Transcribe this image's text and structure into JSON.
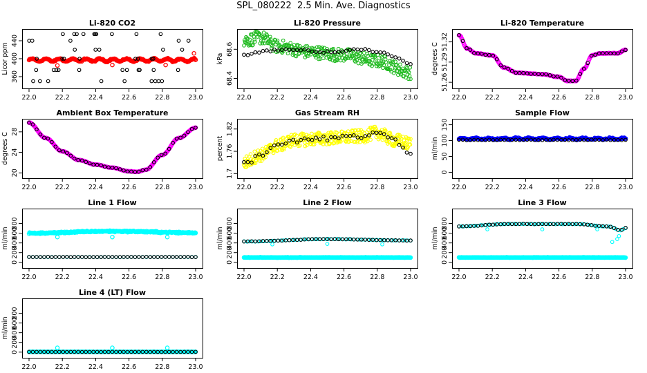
{
  "title": "SPL_080222  2.5 Min. Ave. Diagnostics",
  "chart_data": [
    {
      "id": "co2",
      "type": "scatter",
      "title": "Li-820 CO2",
      "ylabel": "Licor ppm",
      "xlim": [
        22.0,
        23.0
      ],
      "ylim": [
        340,
        460
      ],
      "yticks": [
        360,
        400,
        440
      ],
      "xticks": [
        22.0,
        22.2,
        22.4,
        22.6,
        22.8,
        23.0
      ],
      "series": [
        {
          "name": "co2-1",
          "color": "#ff0000",
          "shape": "dense",
          "gen": "flat",
          "base": 397,
          "amp": 3,
          "noise": 2,
          "n": 260,
          "outliers": [
            [
              22.17,
              385
            ],
            [
              22.5,
              386
            ],
            [
              22.82,
              386
            ],
            [
              22.99,
              412
            ]
          ]
        },
        {
          "name": "co2-2",
          "color": "#000000",
          "shape": "ring",
          "gen": "levels",
          "levels": [
            350,
            375,
            400,
            420,
            440,
            455
          ],
          "n": 48
        }
      ]
    },
    {
      "id": "pressure",
      "type": "scatter",
      "title": "Li-820 Pressure",
      "ylabel": "kPa",
      "xlim": [
        22.0,
        23.0
      ],
      "ylim": [
        68.35,
        68.72
      ],
      "yticks": [
        68.4,
        68.6
      ],
      "xticks": [
        22.0,
        22.2,
        22.4,
        22.6,
        22.8,
        23.0
      ],
      "series": [
        {
          "name": "pressure-1",
          "color": "#22bb22",
          "shape": "ring",
          "gen": "bands",
          "pts": [
            [
              22.0,
              68.66
            ],
            [
              22.1,
              68.68
            ],
            [
              22.2,
              68.62
            ],
            [
              22.4,
              68.58
            ],
            [
              22.6,
              68.56
            ],
            [
              22.8,
              68.52
            ],
            [
              23.0,
              68.44
            ]
          ],
          "spread": 0.09,
          "n": 320
        },
        {
          "name": "pressure-2",
          "color": "#000000",
          "shape": "ring",
          "gen": "curve",
          "pts": [
            [
              22.0,
              68.56
            ],
            [
              22.15,
              68.59
            ],
            [
              22.3,
              68.6
            ],
            [
              22.5,
              68.58
            ],
            [
              22.7,
              68.6
            ],
            [
              22.8,
              68.58
            ],
            [
              22.9,
              68.55
            ],
            [
              23.0,
              68.5
            ]
          ],
          "noise": 0.01,
          "n": 45
        }
      ]
    },
    {
      "id": "li820temp",
      "type": "scatter",
      "title": "Li-820 Temperature",
      "ylabel": "degrees C",
      "xlim": [
        22.0,
        23.0
      ],
      "ylim": [
        51.255,
        51.335
      ],
      "yticks": [
        51.26,
        51.29,
        51.32
      ],
      "xticks": [
        22.0,
        22.2,
        22.4,
        22.6,
        22.8,
        23.0
      ],
      "series": [
        {
          "name": "li820temp-1",
          "color": "#ff00ff",
          "shape": "dense",
          "gen": "curve",
          "pts": [
            [
              22.0,
              51.33
            ],
            [
              22.05,
              51.31
            ],
            [
              22.1,
              51.303
            ],
            [
              22.2,
              51.3
            ],
            [
              22.27,
              51.282
            ],
            [
              22.35,
              51.274
            ],
            [
              22.5,
              51.272
            ],
            [
              22.6,
              51.268
            ],
            [
              22.65,
              51.262
            ],
            [
              22.7,
              51.262
            ],
            [
              22.75,
              51.28
            ],
            [
              22.8,
              51.3
            ],
            [
              22.85,
              51.303
            ],
            [
              22.95,
              51.303
            ],
            [
              23.0,
              51.308
            ]
          ],
          "noise": 0.0007,
          "n": 260
        },
        {
          "name": "li820temp-2",
          "color": "#000000",
          "shape": "ring",
          "gen": "curve",
          "pts": [
            [
              22.0,
              51.33
            ],
            [
              22.05,
              51.31
            ],
            [
              22.1,
              51.303
            ],
            [
              22.2,
              51.3
            ],
            [
              22.27,
              51.282
            ],
            [
              22.35,
              51.274
            ],
            [
              22.5,
              51.272
            ],
            [
              22.6,
              51.268
            ],
            [
              22.65,
              51.262
            ],
            [
              22.7,
              51.262
            ],
            [
              22.75,
              51.28
            ],
            [
              22.8,
              51.3
            ],
            [
              22.85,
              51.303
            ],
            [
              22.95,
              51.303
            ],
            [
              23.0,
              51.308
            ]
          ],
          "noise": 0.0005,
          "n": 45
        }
      ]
    },
    {
      "id": "ambient",
      "type": "scatter",
      "title": "Ambient Box Temperature",
      "ylabel": "degrees C",
      "xlim": [
        22.0,
        23.0
      ],
      "ylim": [
        19.5,
        30.0
      ],
      "yticks": [
        20,
        24,
        28
      ],
      "xticks": [
        22.0,
        22.2,
        22.4,
        22.6,
        22.8,
        23.0
      ],
      "series": [
        {
          "name": "ambient-1",
          "color": "#ff00ff",
          "shape": "dense",
          "gen": "curve",
          "pts": [
            [
              22.0,
              29.8
            ],
            [
              22.1,
              26.8
            ],
            [
              22.2,
              24.2
            ],
            [
              22.3,
              22.5
            ],
            [
              22.4,
              21.6
            ],
            [
              22.5,
              21.0
            ],
            [
              22.6,
              20.3
            ],
            [
              22.65,
              20.2
            ],
            [
              22.7,
              20.6
            ],
            [
              22.8,
              23.5
            ],
            [
              22.9,
              26.8
            ],
            [
              23.0,
              28.8
            ]
          ],
          "noise": 0.05,
          "n": 260
        },
        {
          "name": "ambient-2",
          "color": "#000000",
          "shape": "ring",
          "gen": "curve",
          "pts": [
            [
              22.0,
              29.8
            ],
            [
              22.1,
              26.8
            ],
            [
              22.2,
              24.2
            ],
            [
              22.3,
              22.5
            ],
            [
              22.4,
              21.6
            ],
            [
              22.5,
              21.0
            ],
            [
              22.6,
              20.3
            ],
            [
              22.65,
              20.2
            ],
            [
              22.7,
              20.6
            ],
            [
              22.8,
              23.5
            ],
            [
              22.9,
              26.8
            ],
            [
              23.0,
              28.8
            ]
          ],
          "noise": 0.05,
          "n": 45
        }
      ]
    },
    {
      "id": "rh",
      "type": "scatter",
      "title": "Gas Stream RH",
      "ylabel": "percent",
      "xlim": [
        22.0,
        23.0
      ],
      "ylim": [
        1.695,
        1.84
      ],
      "yticks": [
        1.7,
        1.76,
        1.82
      ],
      "xticks": [
        22.0,
        22.2,
        22.4,
        22.6,
        22.8,
        23.0
      ],
      "series": [
        {
          "name": "rh-1",
          "color": "#ffff00",
          "shape": "ring",
          "gen": "bands",
          "pts": [
            [
              22.0,
              1.73
            ],
            [
              22.1,
              1.75
            ],
            [
              22.2,
              1.775
            ],
            [
              22.3,
              1.79
            ],
            [
              22.5,
              1.795
            ],
            [
              22.7,
              1.8
            ],
            [
              22.8,
              1.81
            ],
            [
              22.9,
              1.79
            ],
            [
              23.0,
              1.78
            ]
          ],
          "spread": 0.035,
          "n": 380
        },
        {
          "name": "rh-2",
          "color": "#000000",
          "shape": "ring",
          "gen": "curve",
          "pts": [
            [
              22.0,
              1.73
            ],
            [
              22.1,
              1.75
            ],
            [
              22.2,
              1.775
            ],
            [
              22.3,
              1.79
            ],
            [
              22.5,
              1.795
            ],
            [
              22.7,
              1.8
            ],
            [
              22.8,
              1.81
            ],
            [
              22.9,
              1.79
            ],
            [
              23.0,
              1.75
            ]
          ],
          "noise": 0.01,
          "n": 45
        }
      ]
    },
    {
      "id": "sample",
      "type": "scatter",
      "title": "Sample Flow",
      "ylabel": "ml/min",
      "xlim": [
        22.0,
        23.0
      ],
      "ylim": [
        -10,
        160
      ],
      "yticks": [
        0,
        50,
        100,
        150
      ],
      "xticks": [
        22.0,
        22.2,
        22.4,
        22.6,
        22.8,
        23.0
      ],
      "series": [
        {
          "name": "sample-1",
          "color": "#0000ff",
          "shape": "dense",
          "gen": "flat",
          "base": 106,
          "amp": 2,
          "noise": 3,
          "n": 260
        },
        {
          "name": "sample-2",
          "color": "#000000",
          "shape": "ring",
          "gen": "flat",
          "base": 102,
          "amp": 0,
          "noise": 1.5,
          "n": 45
        }
      ]
    },
    {
      "id": "line1",
      "type": "scatter",
      "title": "Line 1 Flow",
      "ylabel": "ml/min",
      "xlim": [
        22.0,
        23.0
      ],
      "ylim": [
        -60,
        1050
      ],
      "yticks": [
        0,
        200,
        400,
        600,
        800
      ],
      "xticks": [
        22.0,
        22.2,
        22.4,
        22.6,
        22.8,
        23.0
      ],
      "series": [
        {
          "name": "line1-1",
          "color": "#00ffff",
          "shape": "dense",
          "gen": "curve",
          "pts": [
            [
              22.0,
              600
            ],
            [
              22.5,
              640
            ],
            [
              23.0,
              610
            ]
          ],
          "noise": 22,
          "n": 300,
          "outliers": [
            [
              22.17,
              520
            ],
            [
              22.5,
              520
            ],
            [
              22.83,
              520
            ]
          ]
        },
        {
          "name": "line1-2",
          "color": "#00ffff",
          "shape": "ring",
          "gen": "flat",
          "base": 110,
          "amp": 0,
          "noise": 3,
          "n": 45
        },
        {
          "name": "line1-3",
          "color": "#000000",
          "shape": "ring",
          "gen": "flat",
          "base": 110,
          "amp": 0,
          "noise": 3,
          "n": 45
        }
      ]
    },
    {
      "id": "line2",
      "type": "scatter",
      "title": "Line 2 Flow",
      "ylabel": "ml/min",
      "xlim": [
        22.0,
        23.0
      ],
      "ylim": [
        -60,
        1050
      ],
      "yticks": [
        0,
        200,
        400,
        600,
        800
      ],
      "xticks": [
        22.0,
        22.2,
        22.4,
        22.6,
        22.8,
        23.0
      ],
      "series": [
        {
          "name": "line2-1",
          "color": "#00ffff",
          "shape": "dense",
          "gen": "flat",
          "base": 100,
          "amp": 0,
          "noise": 6,
          "n": 260
        },
        {
          "name": "line2-2",
          "color": "#00ffff",
          "shape": "ring",
          "gen": "curve",
          "pts": [
            [
              22.0,
              430
            ],
            [
              22.5,
              480
            ],
            [
              23.0,
              450
            ]
          ],
          "noise": 6,
          "n": 60,
          "outliers": [
            [
              22.17,
              370
            ],
            [
              22.5,
              380
            ],
            [
              22.83,
              370
            ]
          ]
        },
        {
          "name": "line2-3",
          "color": "#000000",
          "shape": "ring",
          "gen": "curve",
          "pts": [
            [
              22.0,
              430
            ],
            [
              22.5,
              480
            ],
            [
              23.0,
              450
            ]
          ],
          "noise": 6,
          "n": 45
        }
      ]
    },
    {
      "id": "line3",
      "type": "scatter",
      "title": "Line 3 Flow",
      "ylabel": "ml/min",
      "xlim": [
        22.0,
        23.0
      ],
      "ylim": [
        -60,
        1050
      ],
      "yticks": [
        0,
        200,
        400,
        600,
        800
      ],
      "xticks": [
        22.0,
        22.2,
        22.4,
        22.6,
        22.8,
        23.0
      ],
      "series": [
        {
          "name": "line3-1",
          "color": "#00ffff",
          "shape": "dense",
          "gen": "flat",
          "base": 100,
          "amp": 0,
          "noise": 6,
          "n": 260
        },
        {
          "name": "line3-2",
          "color": "#00ffff",
          "shape": "ring",
          "gen": "curve",
          "pts": [
            [
              22.0,
              740
            ],
            [
              22.3,
              790
            ],
            [
              22.7,
              790
            ],
            [
              22.9,
              740
            ],
            [
              22.97,
              660
            ],
            [
              23.0,
              710
            ]
          ],
          "noise": 8,
          "n": 70,
          "outliers": [
            [
              22.17,
              680
            ],
            [
              22.5,
              680
            ],
            [
              22.83,
              680
            ],
            [
              22.92,
              420
            ],
            [
              22.95,
              480
            ],
            [
              22.96,
              540
            ]
          ]
        },
        {
          "name": "line3-3",
          "color": "#000000",
          "shape": "ring",
          "gen": "curve",
          "pts": [
            [
              22.0,
              740
            ],
            [
              22.3,
              790
            ],
            [
              22.7,
              790
            ],
            [
              22.9,
              740
            ],
            [
              22.97,
              660
            ],
            [
              23.0,
              710
            ]
          ],
          "noise": 6,
          "n": 45
        }
      ]
    },
    {
      "id": "line4",
      "type": "scatter",
      "title": "Line 4 (LT) Flow",
      "ylabel": "ml/min",
      "xlim": [
        22.0,
        23.0
      ],
      "ylim": [
        -60,
        1050
      ],
      "yticks": [
        0,
        200,
        400,
        600,
        800
      ],
      "xticks": [
        22.0,
        22.2,
        22.4,
        22.6,
        22.8,
        23.0
      ],
      "series": [
        {
          "name": "line4-1",
          "color": "#00ffff",
          "shape": "dense",
          "gen": "flat",
          "base": 5,
          "amp": 0,
          "noise": 2,
          "n": 260,
          "outliers": [
            [
              22.17,
              90
            ],
            [
              22.5,
              90
            ],
            [
              22.83,
              90
            ]
          ]
        },
        {
          "name": "line4-2",
          "color": "#000000",
          "shape": "ring",
          "gen": "flat",
          "base": 5,
          "amp": 0,
          "noise": 1,
          "n": 45
        }
      ]
    }
  ]
}
